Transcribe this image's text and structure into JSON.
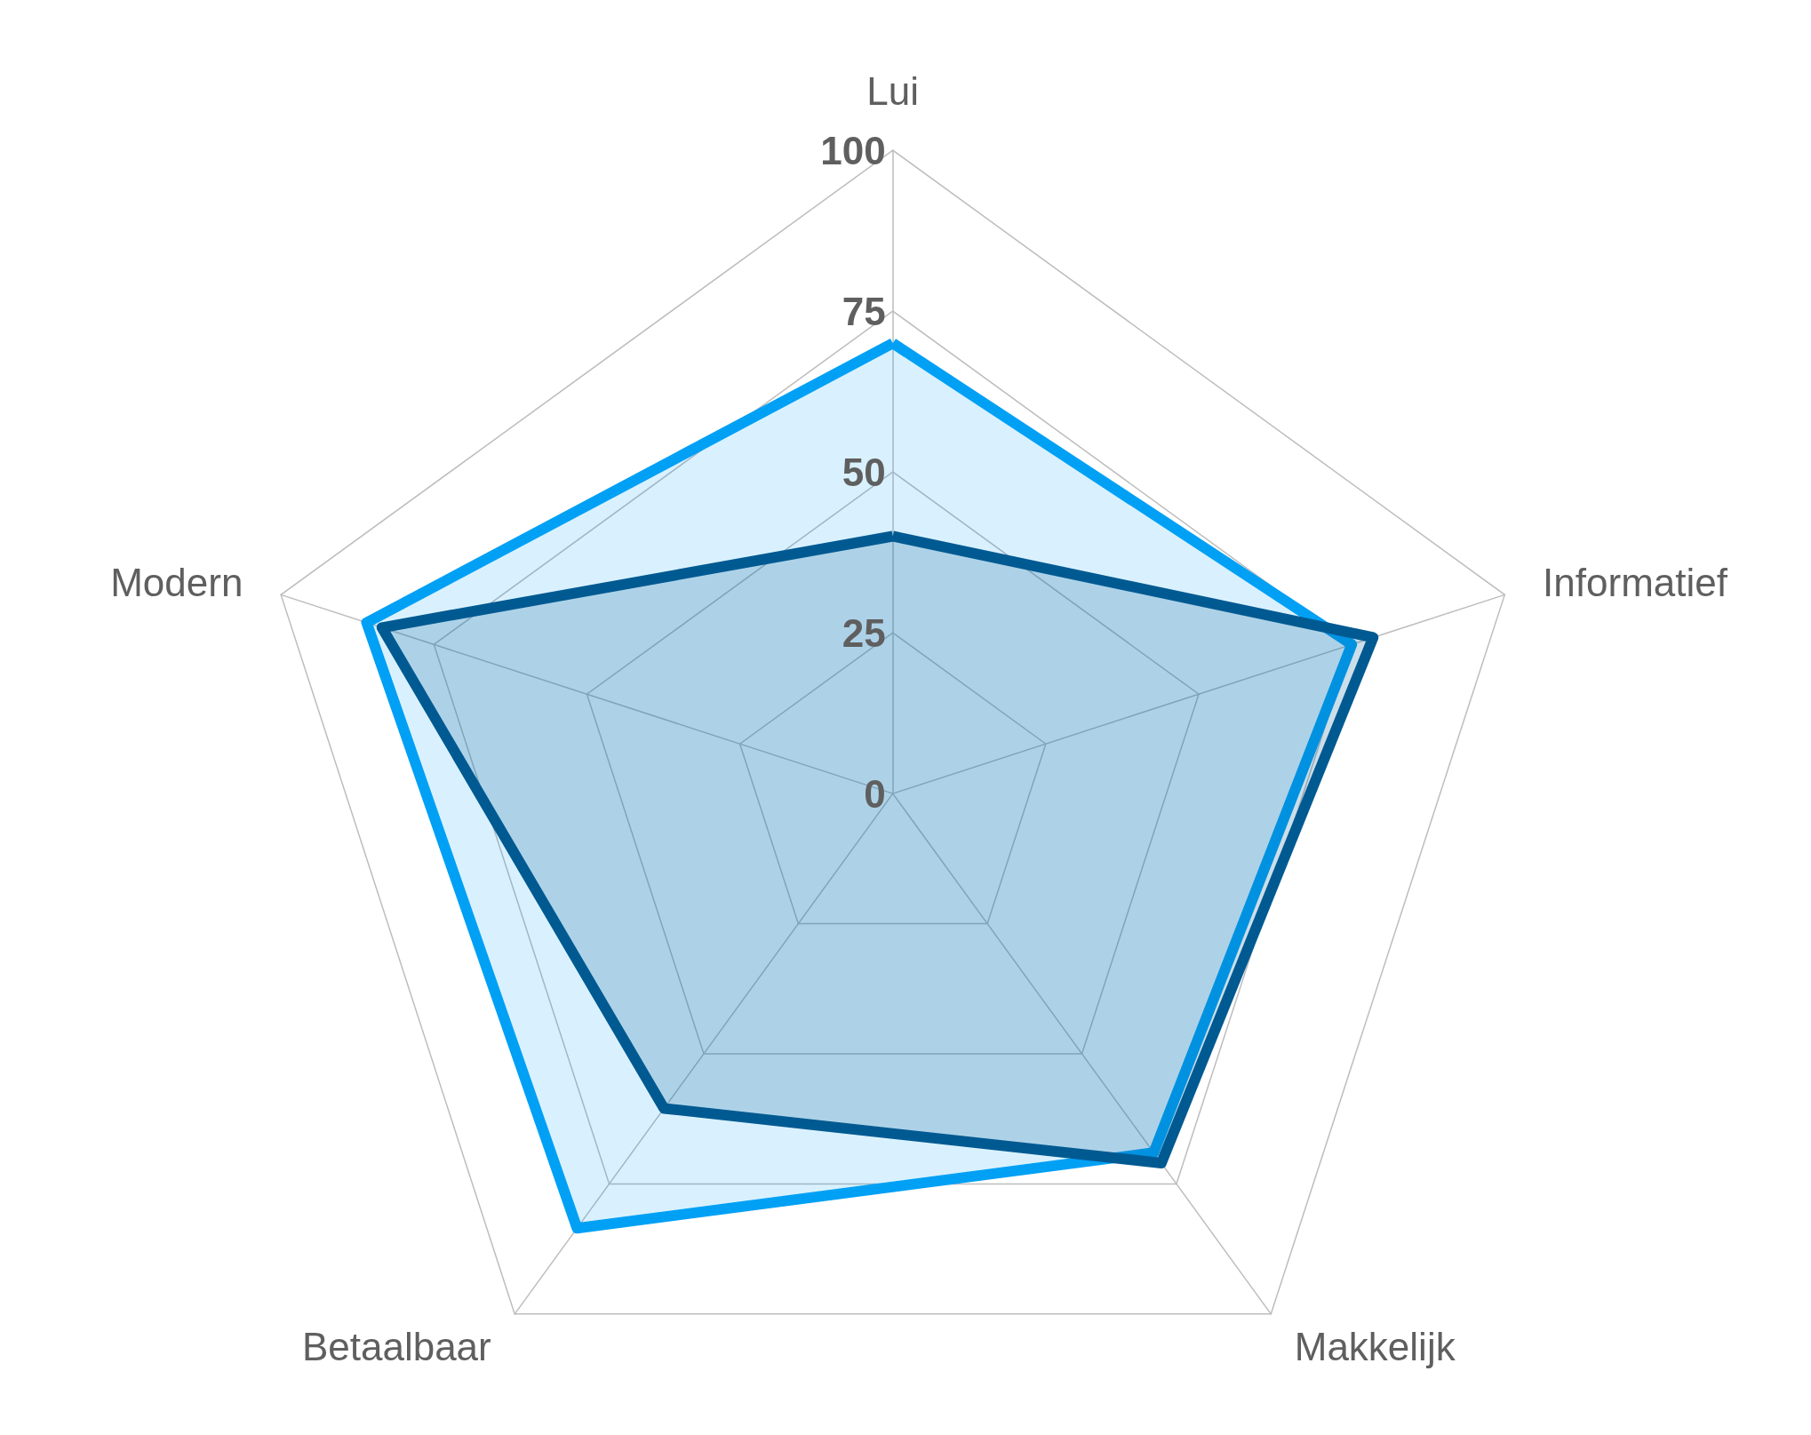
{
  "chart_data": {
    "type": "radar",
    "categories": [
      "Lui",
      "Informatief",
      "Makkelijk",
      "Betaalbaar",
      "Modern"
    ],
    "series": [
      {
        "color": "#00a0f5",
        "values": [
          70,
          75,
          69,
          83.5,
          86
        ]
      },
      {
        "color": "#005a92",
        "values": [
          40,
          78.5,
          71,
          60.5,
          83.5
        ]
      }
    ],
    "ylim": [
      0,
      100
    ],
    "yticks": [
      0,
      25,
      50,
      75,
      100
    ],
    "marker": "none",
    "line_style": "solid"
  }
}
